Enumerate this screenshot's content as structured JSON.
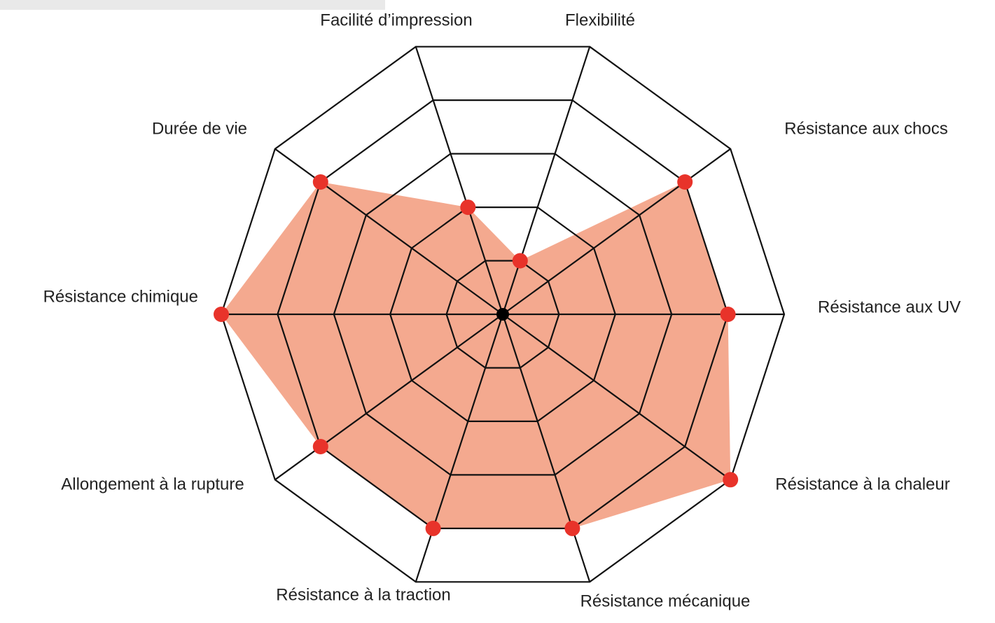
{
  "chart_data": {
    "type": "radar",
    "categories": [
      "Flexibilité",
      "Résistance aux chocs",
      "Résistance aux UV",
      "Résistance à la chaleur",
      "Résistance mécanique",
      "Résistance à la traction",
      "Allongement à la rupture",
      "Résistance chimique",
      "Durée de vie",
      "Facilité d’impression"
    ],
    "values": [
      1,
      4,
      4,
      5,
      4,
      4,
      4,
      5,
      4,
      2
    ],
    "color": "#f4a98f",
    "marker_color": "#e8332a",
    "rlim": [
      0,
      5
    ],
    "rticks": [
      1,
      2,
      3,
      4,
      5
    ],
    "grid": true
  }
}
